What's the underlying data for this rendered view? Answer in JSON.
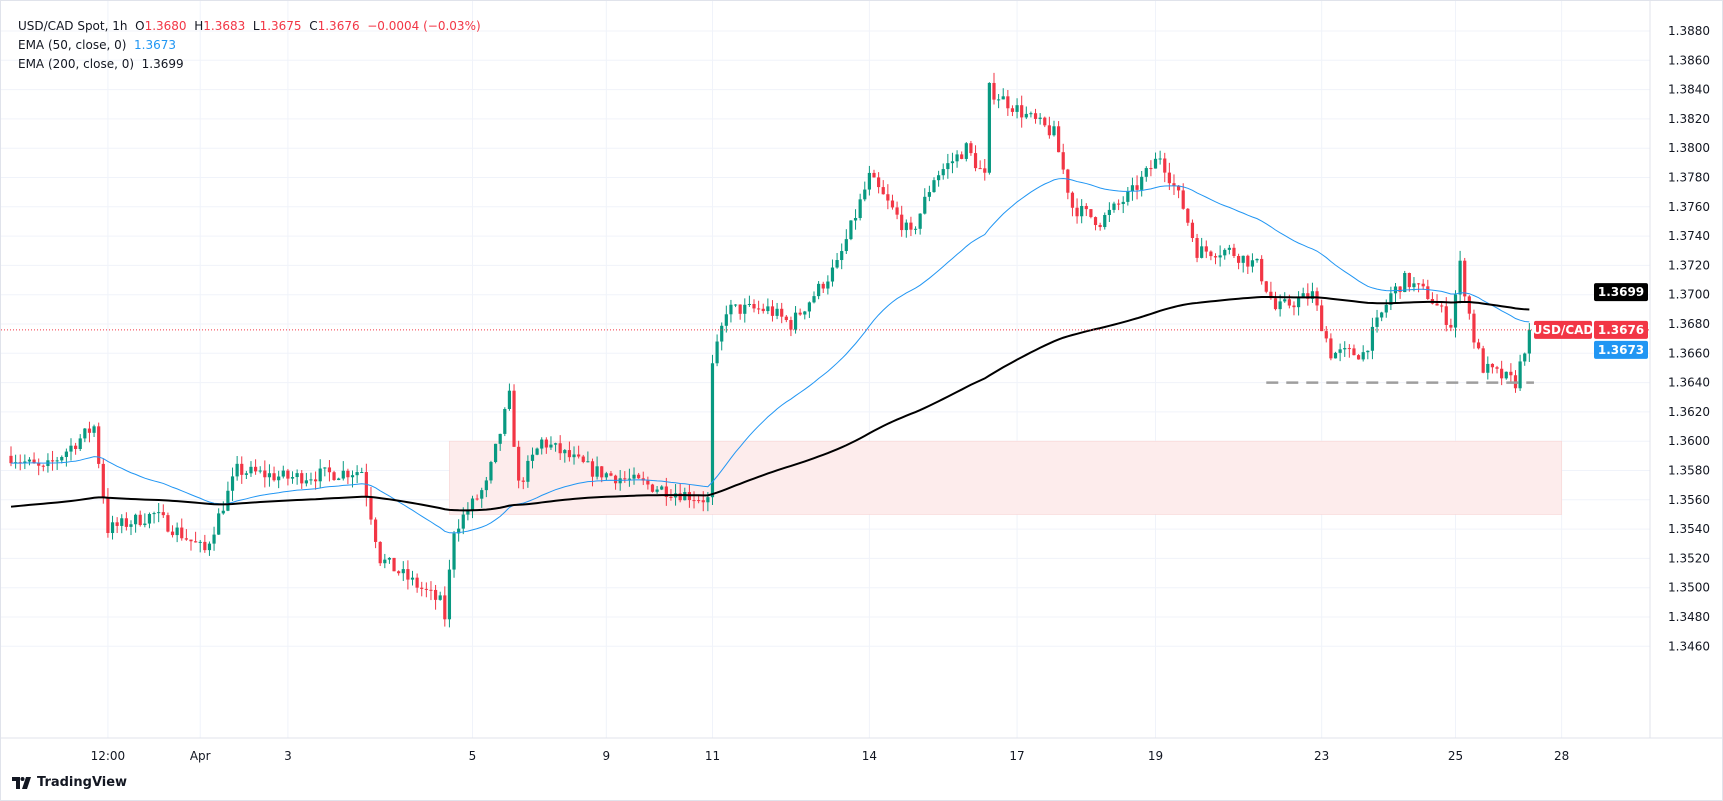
{
  "header": {
    "symbol": "USD/CAD Spot, 1h",
    "o_label": "O",
    "o": "1.3680",
    "h_label": "H",
    "h": "1.3683",
    "l_label": "L",
    "l": "1.3675",
    "c_label": "C",
    "c": "1.3676",
    "change": "−0.0004 (−0.03%)",
    "ema50_label": "EMA (50, close, 0)",
    "ema50": "1.3673",
    "ema200_label": "EMA (200, close, 0)",
    "ema200": "1.3699"
  },
  "logo": "TradingView",
  "colors": {
    "up": "#089981",
    "down": "#F23645",
    "ema50": "#2196F3",
    "ema200": "#000000",
    "zone": "#FDECEC"
  },
  "chart_data": {
    "type": "candlestick",
    "title": "USD/CAD Spot, 1h",
    "ylim": [
      1.345,
      1.389
    ],
    "yticks": [
      "1.3880",
      "1.3860",
      "1.3840",
      "1.3820",
      "1.3800",
      "1.3780",
      "1.3760",
      "1.3740",
      "1.3720",
      "1.3700",
      "1.3680",
      "1.3660",
      "1.3640",
      "1.3620",
      "1.3600",
      "1.3580",
      "1.3560",
      "1.3540",
      "1.3520",
      "1.3500",
      "1.3480",
      "1.3460"
    ],
    "xticks": [
      {
        "bar": 21,
        "label": "12:00"
      },
      {
        "bar": 41,
        "label": "Apr"
      },
      {
        "bar": 60,
        "label": "3"
      },
      {
        "bar": 100,
        "label": "5"
      },
      {
        "bar": 129,
        "label": "9"
      },
      {
        "bar": 152,
        "label": "11"
      },
      {
        "bar": 186,
        "label": "14"
      },
      {
        "bar": 218,
        "label": "17"
      },
      {
        "bar": 248,
        "label": "19"
      },
      {
        "bar": 284,
        "label": "23"
      },
      {
        "bar": 313,
        "label": "25"
      },
      {
        "bar": 336,
        "label": "28"
      }
    ],
    "path_keypoints": [
      [
        0,
        1.359
      ],
      [
        7,
        1.358
      ],
      [
        18,
        1.361
      ],
      [
        21,
        1.354
      ],
      [
        31,
        1.355
      ],
      [
        42,
        1.3525
      ],
      [
        49,
        1.358
      ],
      [
        60,
        1.3575
      ],
      [
        76,
        1.358
      ],
      [
        80,
        1.352
      ],
      [
        93,
        1.349
      ],
      [
        94,
        1.348
      ],
      [
        96,
        1.354
      ],
      [
        103,
        1.357
      ],
      [
        108,
        1.363
      ],
      [
        110,
        1.357
      ],
      [
        115,
        1.36
      ],
      [
        126,
        1.358
      ],
      [
        138,
        1.357
      ],
      [
        151,
        1.356
      ],
      [
        152,
        1.365
      ],
      [
        155,
        1.369
      ],
      [
        164,
        1.369
      ],
      [
        169,
        1.368
      ],
      [
        179,
        1.372
      ],
      [
        186,
        1.378
      ],
      [
        195,
        1.374
      ],
      [
        200,
        1.378
      ],
      [
        207,
        1.38
      ],
      [
        211,
        1.378
      ],
      [
        212,
        1.384
      ],
      [
        221,
        1.382
      ],
      [
        226,
        1.381
      ],
      [
        230,
        1.376
      ],
      [
        236,
        1.375
      ],
      [
        243,
        1.377
      ],
      [
        249,
        1.3795
      ],
      [
        254,
        1.376
      ],
      [
        257,
        1.373
      ],
      [
        264,
        1.373
      ],
      [
        270,
        1.372
      ],
      [
        274,
        1.369
      ],
      [
        282,
        1.37
      ],
      [
        286,
        1.366
      ],
      [
        293,
        1.366
      ],
      [
        299,
        1.37
      ],
      [
        302,
        1.371
      ],
      [
        307,
        1.37
      ],
      [
        312,
        1.368
      ],
      [
        314,
        1.372
      ],
      [
        317,
        1.367
      ],
      [
        319,
        1.365
      ],
      [
        326,
        1.364
      ],
      [
        329,
        1.3676
      ]
    ],
    "ema50": {
      "label": "EMA (50, close, 0)",
      "last": 1.3673
    },
    "ema200": {
      "label": "EMA (200, close, 0)",
      "last": 1.3699
    },
    "zone": {
      "from_bar": 95,
      "to_bar": 336,
      "low": 1.355,
      "high": 1.36
    },
    "support_line": {
      "from_bar": 272,
      "to_bar": 330,
      "price": 1.364
    },
    "last_price_tag": {
      "label": "USD/CAD",
      "price": "1.3676"
    },
    "ema200_tag": "1.3699",
    "ema50_tag": "1.3673"
  }
}
